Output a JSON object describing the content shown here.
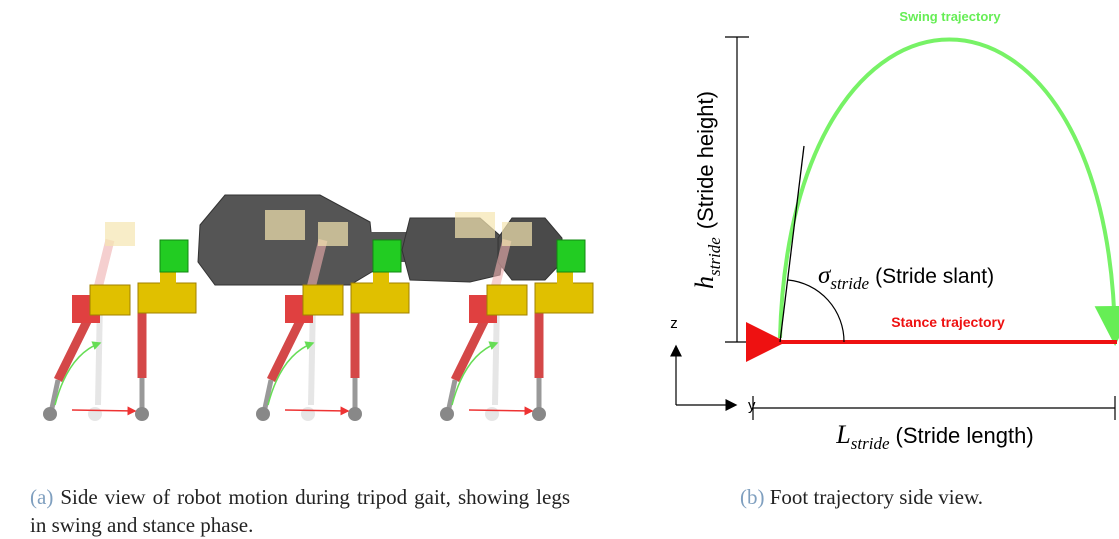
{
  "panel_a": {
    "caption_label": "(a)",
    "caption_text": "Side view of robot motion during tripod gait, showing legs in swing and stance phase."
  },
  "panel_b": {
    "caption_label": "(b)",
    "caption_text": "Foot trajectory side view.",
    "swing_label": "Swing trajectory",
    "stance_label": "Stance trajectory",
    "height_symbol": "h",
    "height_subscript": "stride",
    "height_text": "(Stride height)",
    "slant_symbol": "σ",
    "slant_subscript": "stride",
    "slant_text": "(Stride slant)",
    "length_symbol": "L",
    "length_subscript": "stride",
    "length_text": "(Stride length)",
    "axis_z": "z",
    "axis_y": "y"
  }
}
